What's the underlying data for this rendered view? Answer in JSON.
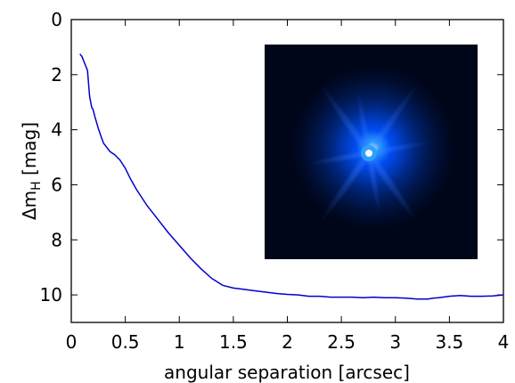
{
  "chart_data": {
    "type": "line",
    "xlabel": "angular separation [arcsec]",
    "ylabel": {
      "main": "Δm",
      "sub": "H",
      "unit": " [mag]"
    },
    "xlim": [
      0,
      4
    ],
    "ylim": [
      0,
      11
    ],
    "y_inverted": true,
    "grid": false,
    "x_ticks": [
      0,
      0.5,
      1,
      1.5,
      2,
      2.5,
      3,
      3.5,
      4
    ],
    "x_tick_labels": [
      "0",
      "0.5",
      "1",
      "1.5",
      "2",
      "2.5",
      "3",
      "3.5",
      "4"
    ],
    "y_ticks": [
      0,
      2,
      4,
      6,
      8,
      10
    ],
    "y_tick_labels": [
      "0",
      "2",
      "4",
      "6",
      "8",
      "10"
    ],
    "series": [
      {
        "color": "#0000cc",
        "x": [
          0.08,
          0.1,
          0.12,
          0.15,
          0.17,
          0.19,
          0.2,
          0.22,
          0.25,
          0.28,
          0.3,
          0.33,
          0.36,
          0.4,
          0.45,
          0.5,
          0.55,
          0.6,
          0.7,
          0.8,
          0.9,
          1.0,
          1.1,
          1.2,
          1.3,
          1.4,
          1.5,
          1.6,
          1.7,
          1.8,
          1.9,
          2.0,
          2.1,
          2.2,
          2.3,
          2.4,
          2.5,
          2.6,
          2.7,
          2.8,
          2.9,
          3.0,
          3.1,
          3.2,
          3.3,
          3.35,
          3.4,
          3.5,
          3.6,
          3.7,
          3.8,
          3.9,
          4.0
        ],
        "y": [
          1.25,
          1.35,
          1.55,
          1.85,
          2.8,
          3.2,
          3.25,
          3.55,
          3.95,
          4.3,
          4.5,
          4.65,
          4.8,
          4.9,
          5.1,
          5.4,
          5.8,
          6.15,
          6.75,
          7.25,
          7.75,
          8.2,
          8.65,
          9.05,
          9.4,
          9.65,
          9.75,
          9.8,
          9.85,
          9.9,
          9.95,
          9.98,
          10.0,
          10.05,
          10.05,
          10.08,
          10.08,
          10.08,
          10.1,
          10.08,
          10.1,
          10.1,
          10.12,
          10.15,
          10.15,
          10.12,
          10.1,
          10.05,
          10.02,
          10.05,
          10.05,
          10.04,
          10.0
        ]
      }
    ],
    "inset": {
      "kind": "image",
      "description_icon": "psf-image-icon",
      "colors": {
        "background": "#00061a",
        "halo": "#0050ff",
        "core": "#2aa0ff",
        "center": "#f4fbff"
      }
    }
  }
}
